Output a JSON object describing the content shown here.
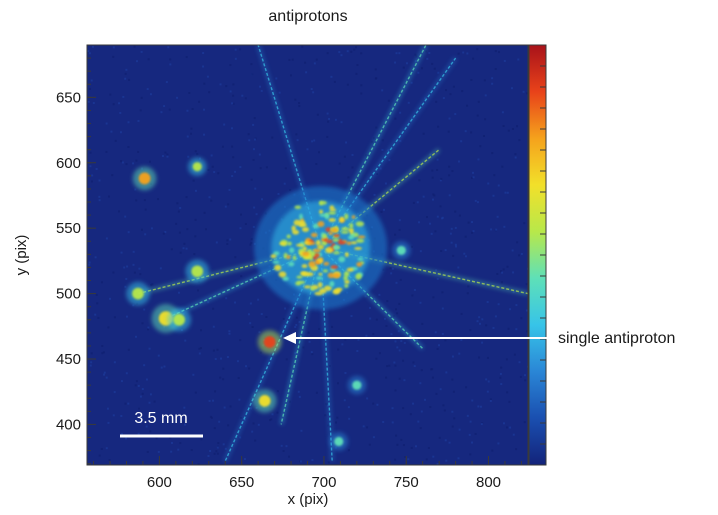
{
  "chart_data": {
    "type": "heatmap",
    "title": "antiprotons",
    "xlabel": "x (pix)",
    "ylabel": "y (pix)",
    "xlim": [
      556,
      824
    ],
    "ylim": [
      369,
      690
    ],
    "x_ticks": [
      "600",
      "650",
      "700",
      "750",
      "800"
    ],
    "y_ticks": [
      "400",
      "450",
      "500",
      "550",
      "600",
      "650"
    ],
    "colorscale": [
      "#13237a",
      "#1a4fb0",
      "#2a86d6",
      "#37c4e8",
      "#5ee0b8",
      "#b8e84a",
      "#f2e02a",
      "#f5a21c",
      "#e8421a",
      "#a8121a"
    ],
    "background_color": "#16287f",
    "annotations": [
      {
        "text": "single antiproton",
        "x": 667,
        "y": 463
      },
      {
        "text": "3.5 mm",
        "type": "scale-bar",
        "x_start": 580,
        "x_end": 630,
        "y": 392
      }
    ],
    "hotspots": [
      {
        "x": 698,
        "y": 535,
        "intensity": 0.95,
        "spread": 30,
        "label": "annihilation cluster"
      },
      {
        "x": 591,
        "y": 588,
        "intensity": 0.75,
        "spread": 3
      },
      {
        "x": 623,
        "y": 597,
        "intensity": 0.55,
        "spread": 2
      },
      {
        "x": 587,
        "y": 500,
        "intensity": 0.5,
        "spread": 3
      },
      {
        "x": 604,
        "y": 481,
        "intensity": 0.7,
        "spread": 4
      },
      {
        "x": 612,
        "y": 480,
        "intensity": 0.6,
        "spread": 3
      },
      {
        "x": 623,
        "y": 517,
        "intensity": 0.5,
        "spread": 3
      },
      {
        "x": 667,
        "y": 463,
        "intensity": 0.85,
        "spread": 3
      },
      {
        "x": 664,
        "y": 418,
        "intensity": 0.7,
        "spread": 3
      },
      {
        "x": 709,
        "y": 387,
        "intensity": 0.4,
        "spread": 2
      },
      {
        "x": 720,
        "y": 430,
        "intensity": 0.4,
        "spread": 2
      },
      {
        "x": 747,
        "y": 533,
        "intensity": 0.45,
        "spread": 2
      }
    ],
    "tracks": [
      {
        "from": [
          698,
          535
        ],
        "to": [
          762,
          690
        ],
        "intensity": 0.3
      },
      {
        "from": [
          698,
          535
        ],
        "to": [
          780,
          680
        ],
        "intensity": 0.2
      },
      {
        "from": [
          698,
          535
        ],
        "to": [
          770,
          610
        ],
        "intensity": 0.45
      },
      {
        "from": [
          698,
          535
        ],
        "to": [
          824,
          500
        ],
        "intensity": 0.4
      },
      {
        "from": [
          698,
          535
        ],
        "to": [
          760,
          458
        ],
        "intensity": 0.35
      },
      {
        "from": [
          698,
          535
        ],
        "to": [
          640,
          372
        ],
        "intensity": 0.25
      },
      {
        "from": [
          698,
          535
        ],
        "to": [
          674,
          400
        ],
        "intensity": 0.35
      },
      {
        "from": [
          698,
          535
        ],
        "to": [
          587,
          500
        ],
        "intensity": 0.4
      },
      {
        "from": [
          698,
          535
        ],
        "to": [
          660,
          690
        ],
        "intensity": 0.25
      },
      {
        "from": [
          698,
          535
        ],
        "to": [
          604,
          481
        ],
        "intensity": 0.35
      },
      {
        "from": [
          698,
          535
        ],
        "to": [
          705,
          372
        ],
        "intensity": 0.2
      }
    ]
  }
}
